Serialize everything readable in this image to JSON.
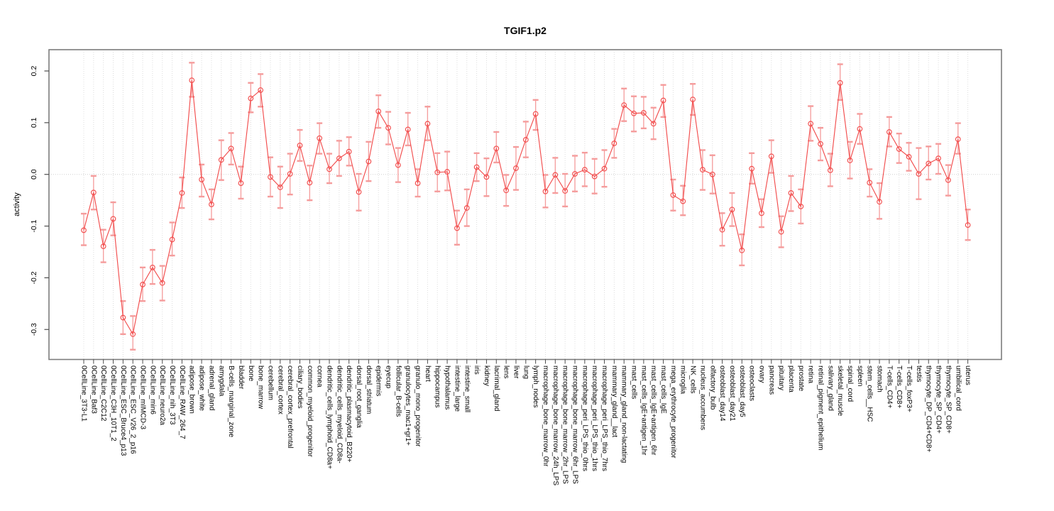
{
  "title": "TGIF1.p2",
  "chart_data": {
    "type": "line",
    "title": "TGIF1.p2",
    "xlabel": "",
    "ylabel": "activity",
    "ylim": [
      -0.355,
      0.24
    ],
    "ytick_values": [
      0.2,
      0.1,
      0.0,
      -0.1,
      -0.2,
      -0.3
    ],
    "ytick_labels": [
      "0.2",
      "0.1",
      "0.0",
      "-0.1",
      "-0.2",
      "-0.3"
    ],
    "grid": "dotted vertical line at every category; dotted horizontal line at 0.0",
    "legend_position": "none",
    "point_style": "open circles with error bars, connected by line",
    "colors": {
      "series": "#f24d4d",
      "error_bar": "#f59c9c",
      "grid_line": "#dcdcdc",
      "zero_line": "#d0d0d0",
      "frame": "#7c7c7c",
      "tick": "#4d4d4d",
      "text": "#000000",
      "background": "#ffffff"
    },
    "categories": [
      "0CellLine_3T3-L1",
      "0CellLine_Baf3",
      "0CellLine_C2C12",
      "0CellLine_C3H_10T1_2",
      "0CellLine_ESC_Bruce4_p13",
      "0CellLine_ESC_V26_2_p16",
      "0CellLine_mIMCD-3",
      "0CellLine_min6",
      "0CellLine_neuro2a",
      "0CellLine_nih_3T3",
      "0CellLine_RAW_264_7",
      "adipose_brown",
      "adipose_white",
      "adrenal_gland",
      "amygdala",
      "B-cells_marginal_zone",
      "bladder",
      "bone",
      "bone_marrow",
      "cerebellum",
      "cerebral_cortex",
      "cerebral_cortex_prefrontal",
      "ciliary_bodies",
      "common_myeloid_progenitor",
      "cornea",
      "dendritic_cells_lymphoid_CD8a+",
      "dendritic_cells_myeloid_CD8a-",
      "dendritic_plasmacytoid_B220+",
      "dorsal_root_ganglia",
      "dorsal_striatum",
      "epidermis",
      "eyecup",
      "follicular_B-cells",
      "granulocytes_mac1+gr1+",
      "granulo_mono_progenitor",
      "heart",
      "hippocampus",
      "hypothalamus",
      "intestine_large",
      "intestine_small",
      "iris",
      "kidney",
      "lacrimal_gland",
      "lens",
      "liver",
      "lung",
      "lymph_nodes",
      "macrophage_bone_marrow_0hr",
      "macrophage_bone_marrow_24h_LPS",
      "macrophage_bone_marrow_2hr_LPS",
      "macrophage_bone_marrow_6hr_LPS",
      "macrophage_peri_LPS_thio_0hrs",
      "macrophage_peri_LPS_thio_1hrs",
      "macrophage_peri_LPS_thio_7hrs",
      "mammary_gland__lact",
      "mammary_gland_non-lactating",
      "mast_cells",
      "mast_cells_IgE+antigen_1hr",
      "mast_cells_IgE+antigen_6hr",
      "mast_cells_IgE",
      "mega_erythrocyte_progenitor",
      "microglia",
      "NK_cells",
      "nucleus_accumbens",
      "olfactory_bulb",
      "osteoblast_day14",
      "osteoblast_day21",
      "osteoblast_day5",
      "osteoclasts",
      "ovary",
      "pancreas",
      "pituitary",
      "placenta",
      "prostate",
      "retina",
      "retinal_pigment_epithelium",
      "salivary_gland",
      "skeletal_muscle",
      "spinal_cord",
      "spleen",
      "stem_cells__HSC",
      "stomach",
      "T-cells_CD4+",
      "T-cells_CD8+",
      "T-cells_foxP3+",
      "testis",
      "thymocyte_DP_CD4+CD8+",
      "thymocyte_SP_CD4+",
      "thymocyte_SP_CD8+",
      "umbilical_cord",
      "uterus"
    ],
    "values": [
      -0.108,
      -0.035,
      -0.139,
      -0.086,
      -0.277,
      -0.309,
      -0.213,
      -0.18,
      -0.21,
      -0.126,
      -0.036,
      0.182,
      -0.01,
      -0.058,
      0.028,
      0.05,
      -0.017,
      0.147,
      0.163,
      -0.005,
      -0.025,
      0.001,
      0.056,
      -0.016,
      0.07,
      0.01,
      0.031,
      0.044,
      -0.034,
      0.025,
      0.122,
      0.09,
      0.018,
      0.087,
      -0.017,
      0.098,
      0.004,
      0.005,
      -0.104,
      -0.065,
      0.014,
      -0.005,
      0.05,
      -0.031,
      0.012,
      0.067,
      0.117,
      -0.033,
      -0.001,
      -0.032,
      0.001,
      0.009,
      -0.004,
      0.011,
      0.06,
      0.134,
      0.118,
      0.119,
      0.098,
      0.143,
      -0.04,
      -0.052,
      0.145,
      0.009,
      0.0,
      -0.107,
      -0.068,
      -0.147,
      0.011,
      -0.075,
      0.035,
      -0.111,
      -0.036,
      -0.062,
      0.098,
      0.059,
      0.008,
      0.177,
      0.027,
      0.088,
      -0.016,
      -0.053,
      0.082,
      0.049,
      0.034,
      0.001,
      0.021,
      0.031,
      -0.011,
      0.068,
      -0.098
    ],
    "ci_low": [
      -0.137,
      -0.068,
      -0.17,
      -0.118,
      -0.309,
      -0.339,
      -0.245,
      -0.212,
      -0.244,
      -0.157,
      -0.065,
      0.15,
      -0.043,
      -0.087,
      -0.011,
      0.019,
      -0.047,
      0.12,
      0.131,
      -0.043,
      -0.065,
      -0.039,
      0.026,
      -0.05,
      0.04,
      -0.017,
      -0.003,
      0.017,
      -0.07,
      -0.013,
      0.09,
      0.058,
      -0.015,
      0.056,
      -0.043,
      0.066,
      -0.033,
      -0.031,
      -0.136,
      -0.1,
      -0.013,
      -0.042,
      0.023,
      -0.061,
      -0.03,
      0.033,
      0.086,
      -0.064,
      -0.036,
      -0.062,
      -0.033,
      -0.023,
      -0.037,
      -0.024,
      0.032,
      0.103,
      0.083,
      0.089,
      0.068,
      0.111,
      -0.07,
      -0.079,
      0.115,
      -0.03,
      -0.037,
      -0.138,
      -0.1,
      -0.176,
      -0.018,
      -0.102,
      0.003,
      -0.141,
      -0.071,
      -0.095,
      0.065,
      0.027,
      -0.023,
      0.144,
      -0.008,
      0.059,
      -0.043,
      -0.086,
      0.054,
      0.022,
      0.007,
      -0.048,
      -0.01,
      0.001,
      -0.041,
      0.04,
      -0.127
    ],
    "ci_high": [
      -0.076,
      -0.003,
      -0.107,
      -0.054,
      -0.245,
      -0.274,
      -0.18,
      -0.146,
      -0.177,
      -0.093,
      -0.006,
      0.216,
      0.019,
      -0.029,
      0.066,
      0.08,
      0.015,
      0.177,
      0.194,
      0.033,
      0.015,
      0.04,
      0.086,
      0.017,
      0.099,
      0.04,
      0.065,
      0.072,
      0.001,
      0.063,
      0.153,
      0.121,
      0.051,
      0.119,
      0.01,
      0.131,
      0.041,
      0.044,
      -0.07,
      -0.029,
      0.041,
      0.031,
      0.082,
      -0.001,
      0.053,
      0.102,
      0.144,
      -0.001,
      0.032,
      0.001,
      0.036,
      0.042,
      0.03,
      0.047,
      0.088,
      0.166,
      0.151,
      0.15,
      0.129,
      0.173,
      -0.01,
      -0.022,
      0.175,
      0.047,
      0.037,
      -0.075,
      -0.036,
      -0.116,
      0.041,
      -0.048,
      0.066,
      -0.081,
      -0.003,
      -0.029,
      0.132,
      0.09,
      0.04,
      0.213,
      0.063,
      0.117,
      0.01,
      -0.017,
      0.111,
      0.079,
      0.061,
      0.051,
      0.054,
      0.059,
      0.018,
      0.099,
      -0.068
    ]
  }
}
